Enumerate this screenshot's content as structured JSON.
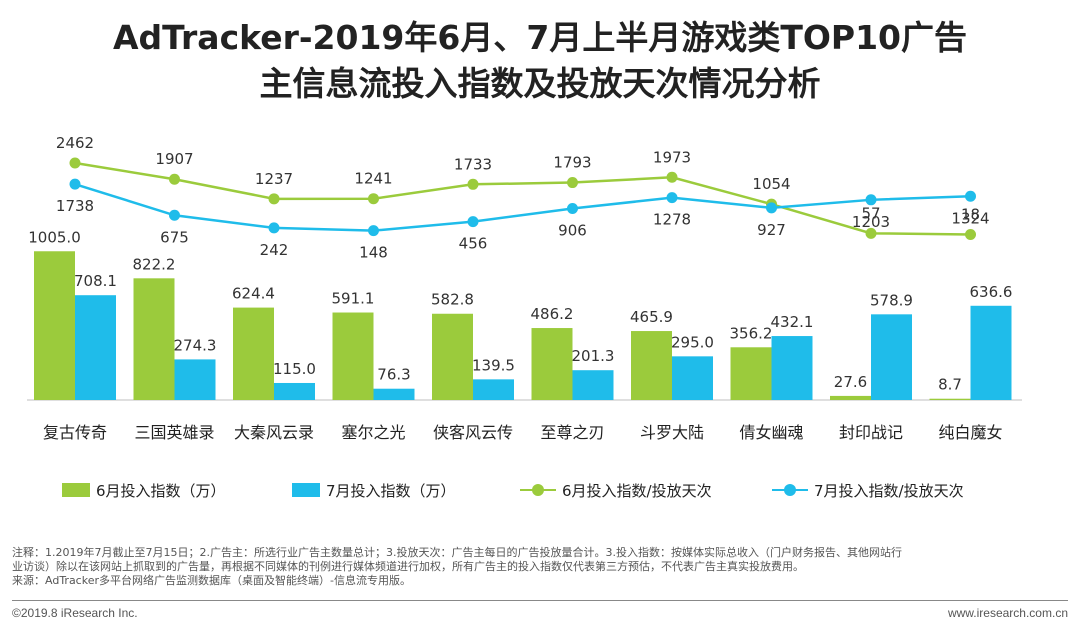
{
  "header": {
    "title_line1": "AdTracker-2019年6月、7月上半月游戏类TOP10广告",
    "title_line2": "主信息流投入指数及投放天次情况分析"
  },
  "chart_data": {
    "type": "bar",
    "categories": [
      "复古传奇",
      "三国英雄录",
      "大秦风云录",
      "塞尔之光",
      "侠客风云传",
      "至尊之刃",
      "斗罗大陆",
      "倩女幽魂",
      "封印战记",
      "纯白魔女"
    ],
    "series": [
      {
        "name": "6月投入指数（万）",
        "kind": "bar",
        "color": "#9bcb3c",
        "values": [
          1005.0,
          822.2,
          624.4,
          591.1,
          582.8,
          486.2,
          465.9,
          356.2,
          27.6,
          8.7
        ],
        "labels": [
          "1005.0",
          "822.2",
          "624.4",
          "591.1",
          "582.8",
          "486.2",
          "465.9",
          "356.2",
          "27.6",
          "8.7"
        ]
      },
      {
        "name": "7月投入指数（万）",
        "kind": "bar",
        "color": "#1fbcea",
        "values": [
          708.1,
          274.3,
          115.0,
          76.3,
          139.5,
          201.3,
          295.0,
          432.1,
          578.9,
          636.6
        ],
        "labels": [
          "708.1",
          "274.3",
          "115.0",
          "76.3",
          "139.5",
          "201.3",
          "295.0",
          "432.1",
          "578.9",
          "636.6"
        ]
      },
      {
        "name": "6月投入指数/投放天次",
        "kind": "line",
        "color": "#9bcb3c",
        "values": [
          2462,
          1907,
          1237,
          1241,
          1733,
          1793,
          1973,
          1054,
          57,
          18
        ]
      },
      {
        "name": "7月投入指数/投放天次",
        "kind": "line",
        "color": "#1fbcea",
        "values": [
          1738,
          675,
          242,
          148,
          456,
          906,
          1278,
          927,
          1203,
          1324
        ]
      }
    ],
    "legend_position": "bottom",
    "grid": false
  },
  "footer": {
    "note_line1": "注释：1.2019年7月截止至7月15日；2.广告主：所选行业广告主数量总计；3.投放天次：广告主每日的广告投放量合计。3.投入指数：按媒体实际总收入（门户财务报告、其他网站行",
    "note_line2": "业访谈）除以在该网站上抓取到的广告量，再根据不同媒体的刊例进行媒体频道进行加权，所有广告主的投入指数仅代表第三方预估，不代表广告主真实投放费用。",
    "source": "来源：AdTracker多平台网络广告监测数据库（桌面及智能终端）-信息流专用版。",
    "copyright": "©2019.8 iResearch Inc.",
    "website": "www.iresearch.com.cn"
  }
}
